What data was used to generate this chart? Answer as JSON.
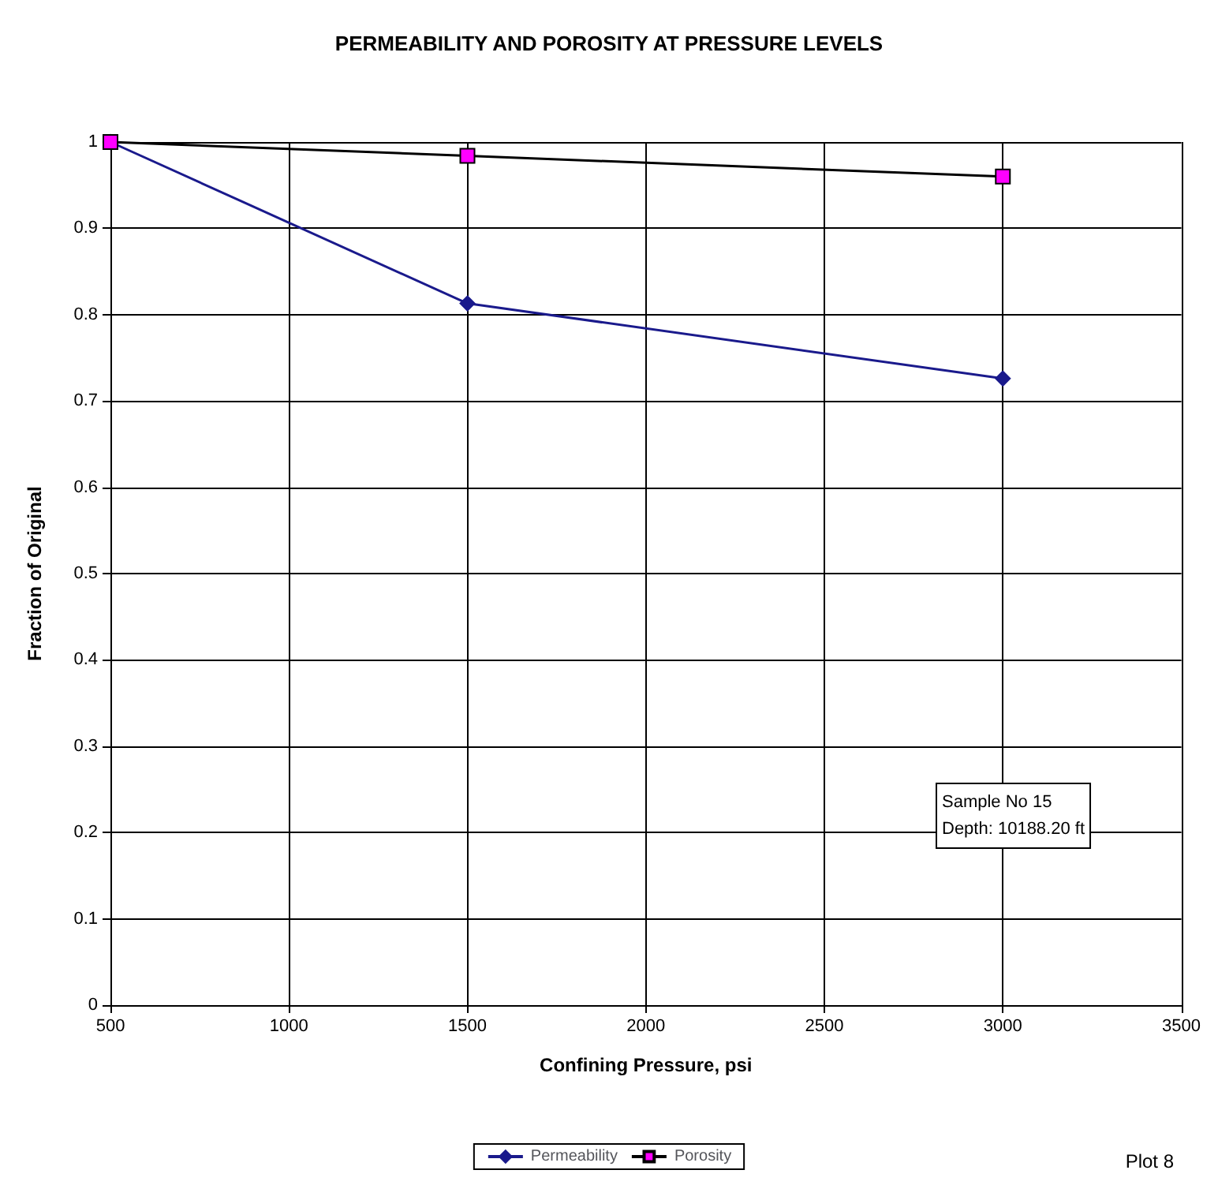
{
  "chart_data": {
    "type": "line",
    "title": "PERMEABILITY AND POROSITY AT PRESSURE LEVELS",
    "xlabel": "Confining Pressure, psi",
    "ylabel": "Fraction of Original",
    "x": [
      500,
      1500,
      3000
    ],
    "series": [
      {
        "name": "Permeability",
        "color": "#1a1a8c",
        "marker": "diamond",
        "values": [
          1,
          0.813,
          0.726
        ]
      },
      {
        "name": "Porosity",
        "color": "#000000",
        "colors": [
          "#ff00ff",
          "#ff00ff",
          "#ff00ff"
        ],
        "marker": "square",
        "values": [
          1,
          0.984,
          0.96
        ]
      }
    ],
    "xlim": [
      500,
      3500
    ],
    "xticks": [
      500,
      1000,
      1500,
      2000,
      2500,
      3000,
      3500
    ],
    "ylim": [
      0,
      1
    ],
    "yticks": [
      0,
      0.1,
      0.2,
      0.3,
      0.4,
      0.5,
      0.6,
      0.7,
      0.8,
      0.9,
      1
    ],
    "grid": true,
    "legend": "bottom",
    "line_style": "solid",
    "annotations": [
      "Sample No 15\nDepth: 10188.20 ft",
      "Plot 8"
    ]
  }
}
